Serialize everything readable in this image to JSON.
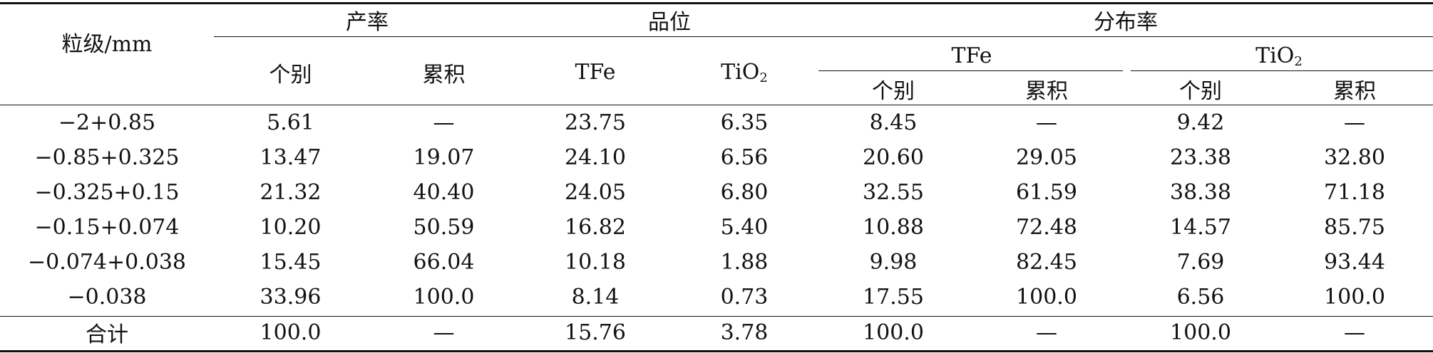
{
  "header": {
    "grain_size": "粒级/mm",
    "yield": "产率",
    "grade": "品位",
    "distribution": "分布率",
    "individual": "个别",
    "cumulative": "累积",
    "tfe": "TFe",
    "tio2_base": "TiO",
    "tio2_sub": "2"
  },
  "rows": [
    {
      "size": "−2+0.85",
      "yield_ind": "5.61",
      "yield_cum": "—",
      "tfe": "23.75",
      "tio2": "6.35",
      "tfe_ind": "8.45",
      "tfe_cum": "—",
      "tio2_ind": "9.42",
      "tio2_cum": "—"
    },
    {
      "size": "−0.85+0.325",
      "yield_ind": "13.47",
      "yield_cum": "19.07",
      "tfe": "24.10",
      "tio2": "6.56",
      "tfe_ind": "20.60",
      "tfe_cum": "29.05",
      "tio2_ind": "23.38",
      "tio2_cum": "32.80"
    },
    {
      "size": "−0.325+0.15",
      "yield_ind": "21.32",
      "yield_cum": "40.40",
      "tfe": "24.05",
      "tio2": "6.80",
      "tfe_ind": "32.55",
      "tfe_cum": "61.59",
      "tio2_ind": "38.38",
      "tio2_cum": "71.18"
    },
    {
      "size": "−0.15+0.074",
      "yield_ind": "10.20",
      "yield_cum": "50.59",
      "tfe": "16.82",
      "tio2": "5.40",
      "tfe_ind": "10.88",
      "tfe_cum": "72.48",
      "tio2_ind": "14.57",
      "tio2_cum": "85.75"
    },
    {
      "size": "−0.074+0.038",
      "yield_ind": "15.45",
      "yield_cum": "66.04",
      "tfe": "10.18",
      "tio2": "1.88",
      "tfe_ind": "9.98",
      "tfe_cum": "82.45",
      "tio2_ind": "7.69",
      "tio2_cum": "93.44"
    },
    {
      "size": "−0.038",
      "yield_ind": "33.96",
      "yield_cum": "100.0",
      "tfe": "8.14",
      "tio2": "0.73",
      "tfe_ind": "17.55",
      "tfe_cum": "100.0",
      "tio2_ind": "6.56",
      "tio2_cum": "100.0"
    }
  ],
  "total": {
    "size": "合计",
    "yield_ind": "100.0",
    "yield_cum": "—",
    "tfe": "15.76",
    "tio2": "3.78",
    "tfe_ind": "100.0",
    "tfe_cum": "—",
    "tio2_ind": "100.0",
    "tio2_cum": "—"
  }
}
